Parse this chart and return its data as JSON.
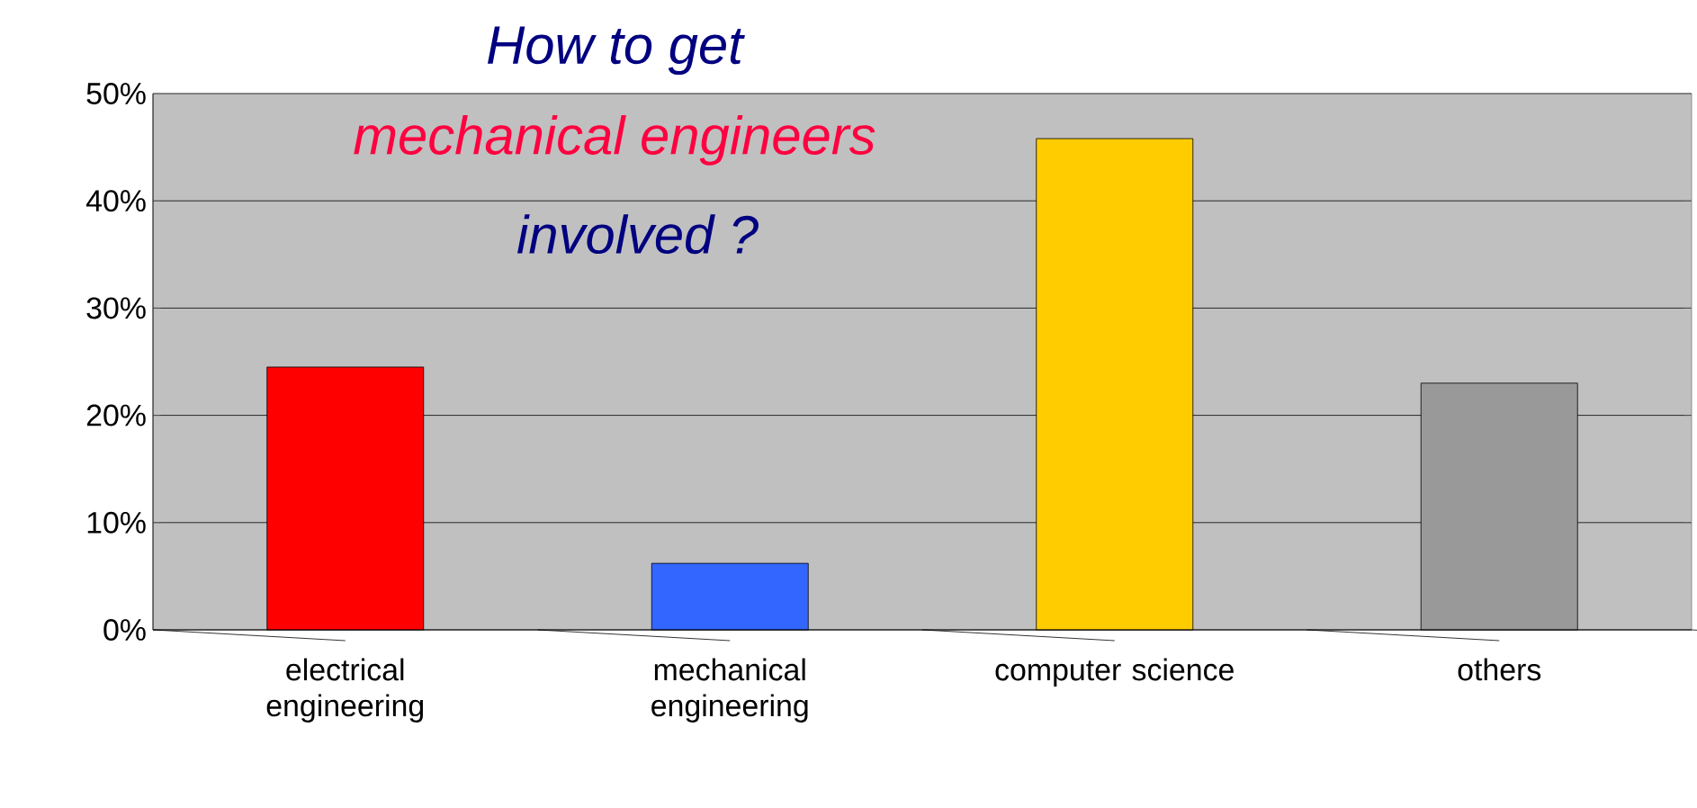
{
  "chart_data": {
    "type": "bar",
    "categories": [
      "electrical engineering",
      "mechanical engineering",
      "computer science",
      "others"
    ],
    "values": [
      24.5,
      6.2,
      45.8,
      23
    ],
    "colors": [
      "#ff0000",
      "#3366ff",
      "#ffcc00",
      "#999999"
    ],
    "ylim": [
      0,
      50
    ],
    "yticks": [
      {
        "value": 0,
        "label": "0%"
      },
      {
        "value": 10,
        "label": "10%"
      },
      {
        "value": 20,
        "label": "20%"
      },
      {
        "value": 30,
        "label": "30%"
      },
      {
        "value": 40,
        "label": "40%"
      },
      {
        "value": 50,
        "label": "50%"
      }
    ],
    "grid": "y",
    "annotations": [
      "How to get",
      "mechanical engineers",
      "involved ?"
    ]
  }
}
